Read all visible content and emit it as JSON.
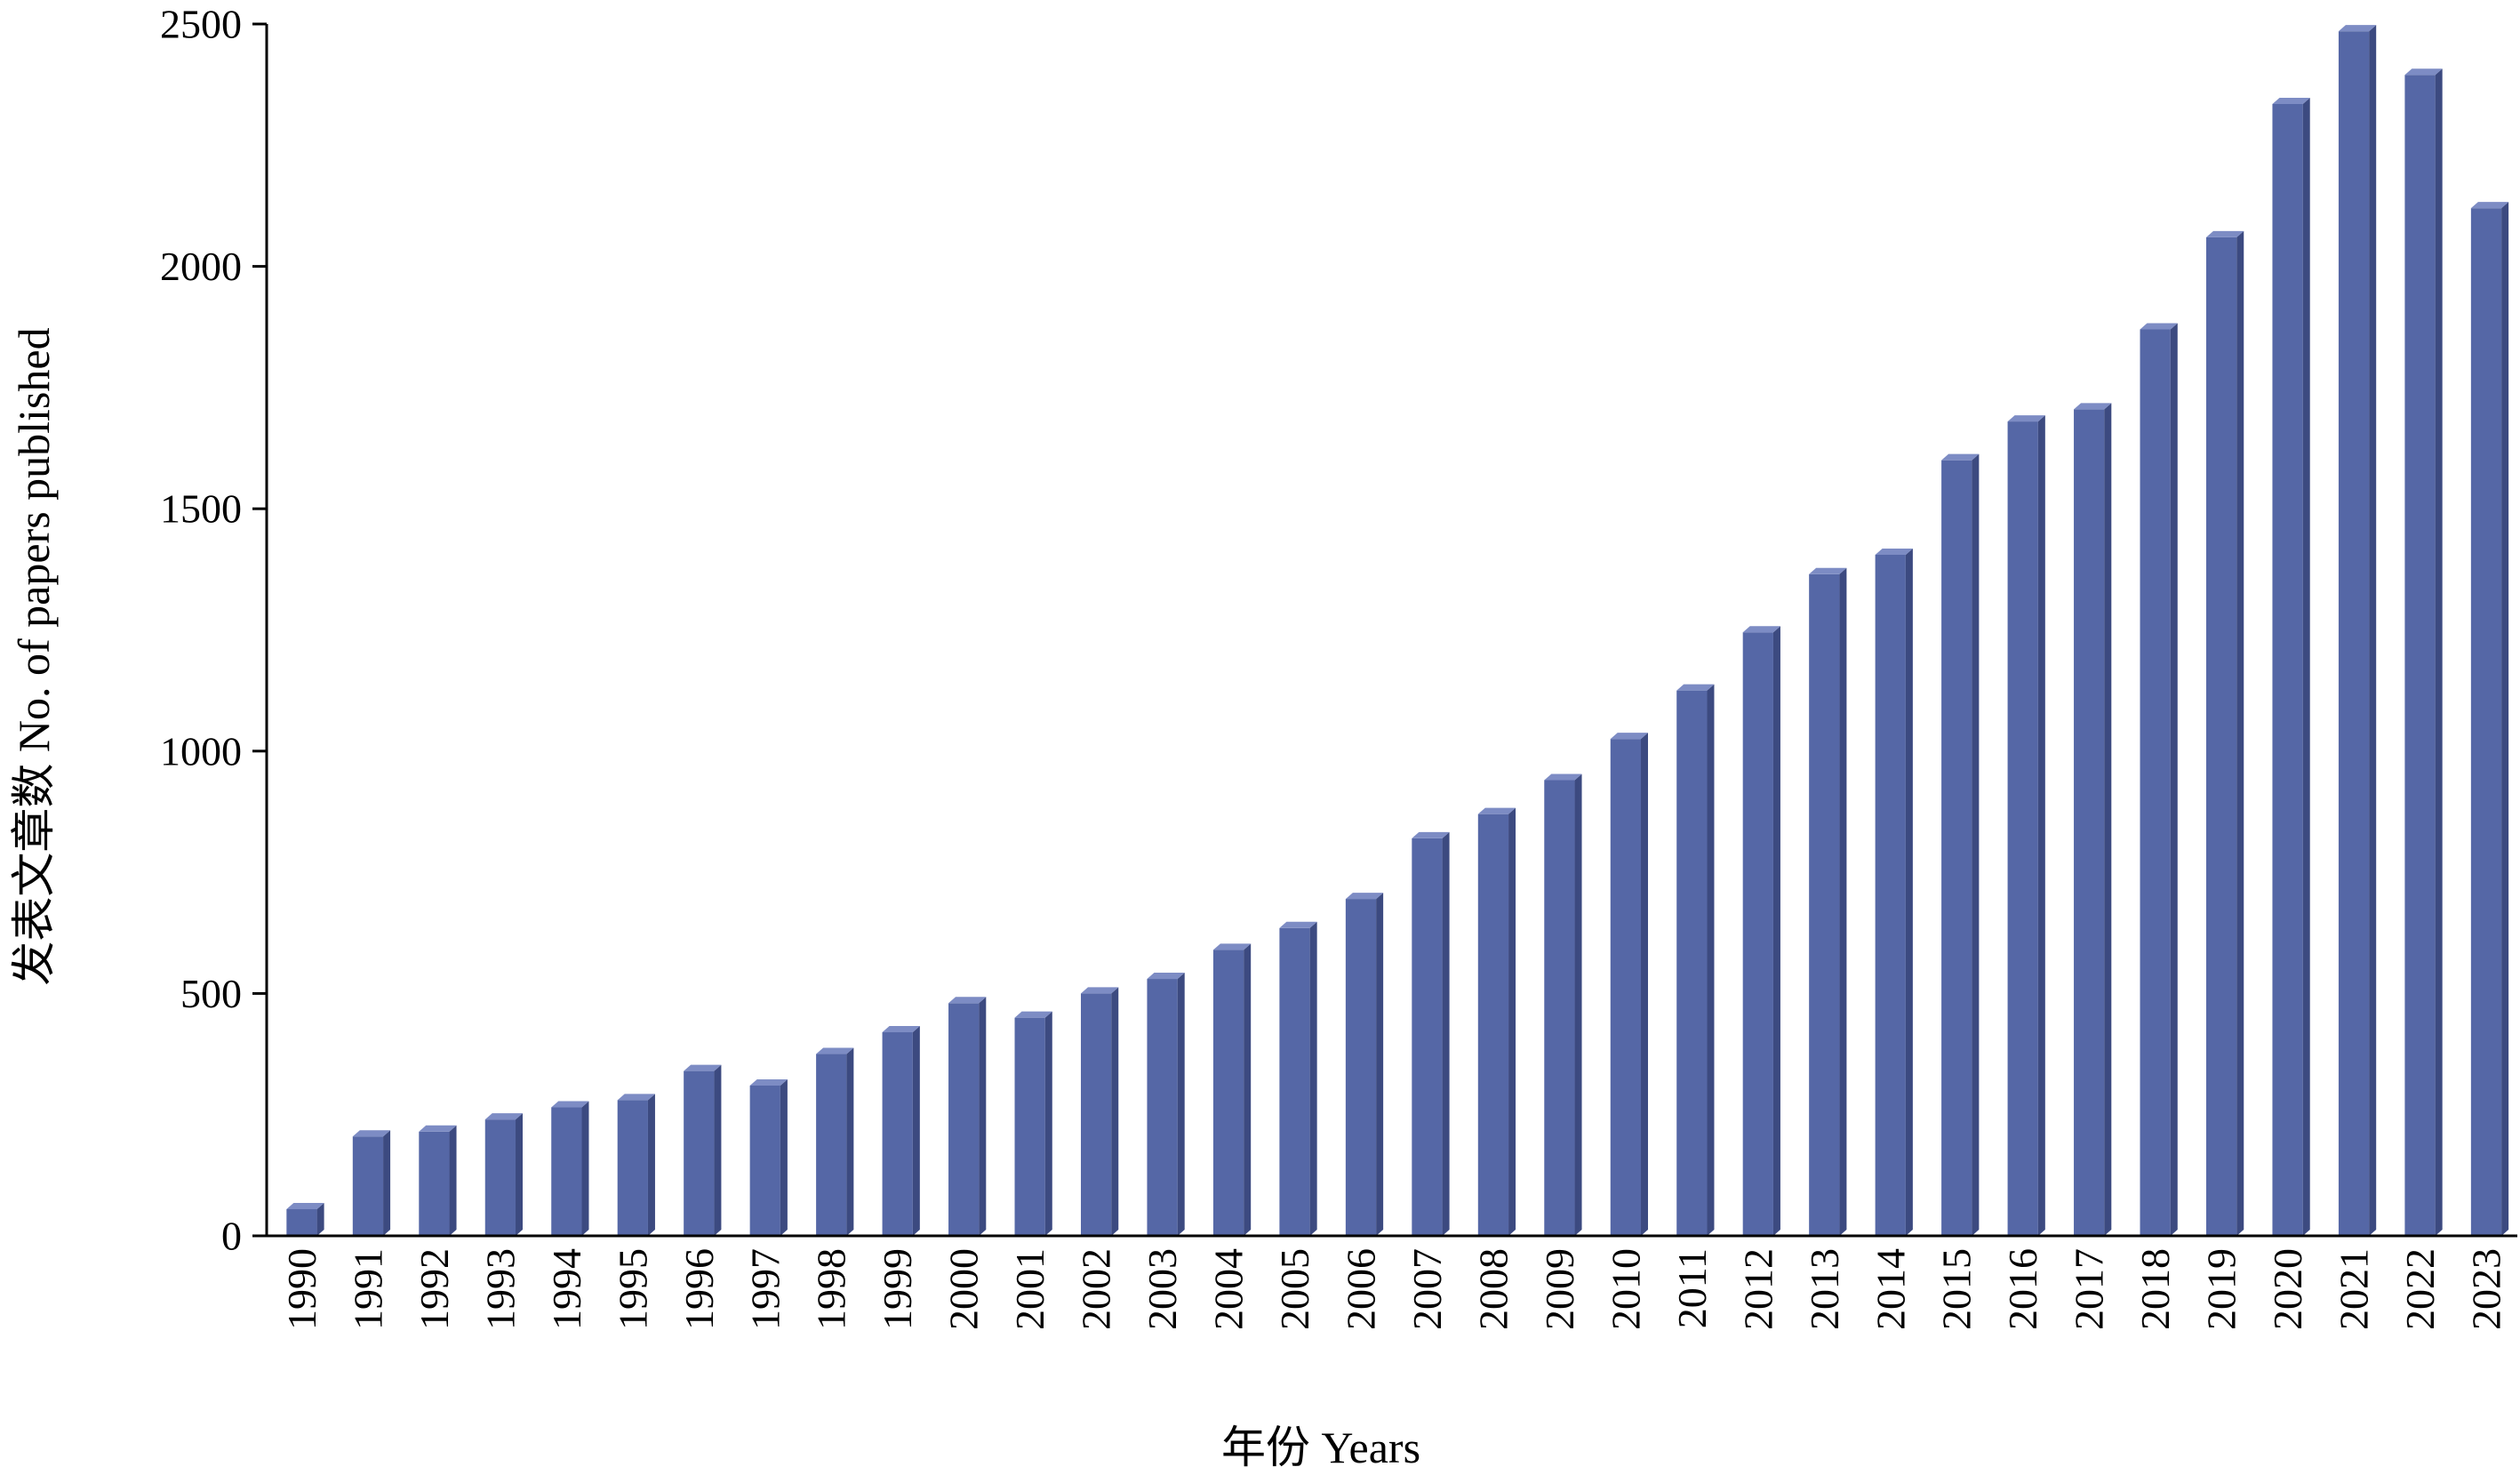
{
  "chart_data": {
    "type": "bar",
    "style": "3d-column",
    "bar_color": "#5567a6",
    "bar_side_color": "#3c4a80",
    "bar_top_color": "#7d8cc4",
    "axis_color": "#000000",
    "grid": false,
    "legend": "none",
    "xlabel": "年份 Years",
    "ylabel": "发表文章数 No. of papers published",
    "ylim": [
      0,
      2500
    ],
    "yticks": [
      0,
      500,
      1000,
      1500,
      2000,
      2500
    ],
    "categories": [
      "1990",
      "1991",
      "1992",
      "1993",
      "1994",
      "1995",
      "1996",
      "1997",
      "1998",
      "1999",
      "2000",
      "2001",
      "2002",
      "2003",
      "2004",
      "2005",
      "2006",
      "2007",
      "2008",
      "2009",
      "2010",
      "2011",
      "2012",
      "2013",
      "2014",
      "2015",
      "2016",
      "2017",
      "2018",
      "2019",
      "2020",
      "2021",
      "2022",
      "2023"
    ],
    "values": [
      55,
      205,
      215,
      240,
      265,
      280,
      340,
      310,
      375,
      420,
      480,
      450,
      500,
      530,
      590,
      635,
      695,
      820,
      870,
      940,
      1025,
      1125,
      1245,
      1365,
      1405,
      1600,
      1680,
      1705,
      1870,
      2060,
      2335,
      2485,
      2395,
      2120
    ]
  }
}
